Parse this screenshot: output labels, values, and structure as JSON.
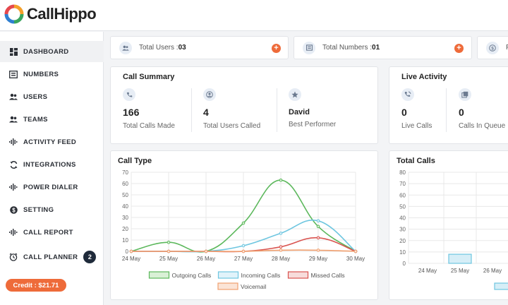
{
  "app": {
    "name": "CallHippo"
  },
  "sidebar": {
    "items": [
      {
        "label": "DASHBOARD",
        "icon": "dashboard-icon"
      },
      {
        "label": "NUMBERS",
        "icon": "numbers-icon"
      },
      {
        "label": "USERS",
        "icon": "users-icon"
      },
      {
        "label": "TEAMS",
        "icon": "teams-icon"
      },
      {
        "label": "ACTIVITY FEED",
        "icon": "activity-feed-icon"
      },
      {
        "label": "INTEGRATIONS",
        "icon": "integrations-icon"
      },
      {
        "label": "POWER DIALER",
        "icon": "power-dialer-icon"
      },
      {
        "label": "SETTING",
        "icon": "setting-icon"
      },
      {
        "label": "CALL REPORT",
        "icon": "call-report-icon"
      },
      {
        "label": "CALL PLANNER",
        "icon": "call-planner-icon",
        "badge": "2"
      }
    ],
    "credit": "Credit : $21.71"
  },
  "stats": {
    "total_users": {
      "label": "Total Users : ",
      "value": "03"
    },
    "total_numbers": {
      "label": "Total Numbers : ",
      "value": "01"
    },
    "third_partial": "F"
  },
  "call_summary": {
    "title": "Call Summary",
    "metrics": [
      {
        "value": "166",
        "label": "Total Calls Made",
        "icon": "phone-icon"
      },
      {
        "value": "4",
        "label": "Total Users Called",
        "icon": "user-circle-icon"
      },
      {
        "value": "David",
        "label": "Best Performer",
        "icon": "star-icon"
      }
    ]
  },
  "live_activity": {
    "title": "Live Activity",
    "metrics": [
      {
        "value": "0",
        "label": "Live Calls",
        "icon": "phone-wave-icon"
      },
      {
        "value": "0",
        "label": "Calls In Queue",
        "icon": "queue-icon"
      }
    ]
  },
  "chart_data": [
    {
      "type": "line",
      "title": "Call Type",
      "categories": [
        "24 May",
        "25 May",
        "26 May",
        "27 May",
        "28 May",
        "29 May",
        "30 May"
      ],
      "ylim": [
        0,
        70
      ],
      "yticks": [
        0,
        10,
        20,
        30,
        40,
        50,
        60,
        70
      ],
      "grid": true,
      "legend_position": "bottom",
      "series": [
        {
          "name": "Outgoing Calls",
          "values": [
            0,
            8,
            0,
            25,
            63,
            22,
            0
          ],
          "color": "#5cb85c",
          "fill": "#d9f0d6"
        },
        {
          "name": "Incoming Calls",
          "values": [
            0,
            0,
            0,
            5,
            16,
            27,
            0
          ],
          "color": "#6ec6e0",
          "fill": "#e1f3fa"
        },
        {
          "name": "Missed Calls",
          "values": [
            0,
            0,
            0,
            0,
            4,
            12,
            0
          ],
          "color": "#d9534f",
          "fill": "#f7dcdb"
        },
        {
          "name": "Voicemail",
          "values": [
            0,
            0,
            0,
            0,
            1,
            1,
            0
          ],
          "color": "#f0a070",
          "fill": "#fbe4d6"
        }
      ]
    },
    {
      "type": "bar",
      "title": "Total Calls",
      "categories": [
        "24 May",
        "25 May",
        "26 May"
      ],
      "values": [
        0,
        8,
        0
      ],
      "ylim": [
        0,
        80
      ],
      "yticks": [
        0,
        10,
        20,
        30,
        40,
        50,
        60,
        70,
        80
      ],
      "grid": true,
      "color": "#6ec6e0",
      "fill": "#d6eef7"
    }
  ]
}
